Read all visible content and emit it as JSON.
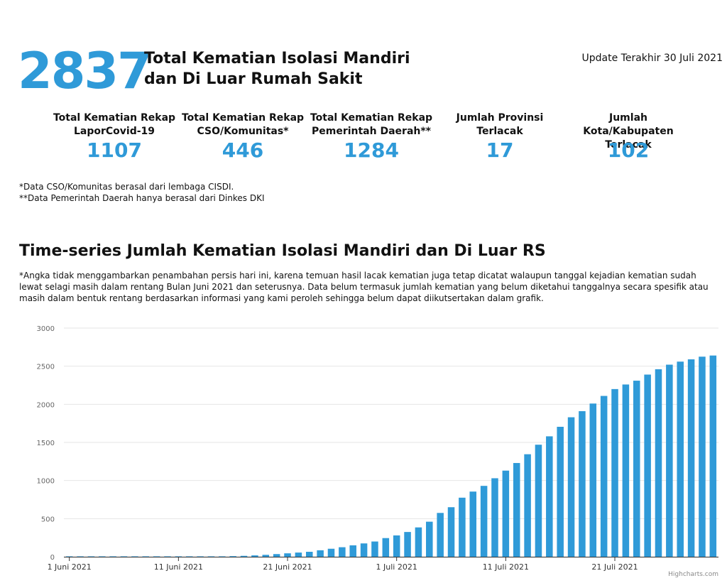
{
  "header": {
    "total_value": "2837",
    "title_line1": "Total Kematian Isolasi Mandiri",
    "title_line2": "dan Di Luar Rumah Sakit",
    "update_text": "Update Terakhir 30 Juli 2021"
  },
  "stats": [
    {
      "label_line1": "Total Kematian Rekap",
      "label_line2": "LaporCovid-19",
      "value": "1107"
    },
    {
      "label_line1": "Total Kematian Rekap",
      "label_line2": "CSO/Komunitas*",
      "value": "446"
    },
    {
      "label_line1": "Total Kematian Rekap",
      "label_line2": "Pemerintah Daerah**",
      "value": "1284"
    },
    {
      "label_line1": "Jumlah Provinsi",
      "label_line2": "Terlacak",
      "value": "17"
    },
    {
      "label_line1": "Jumlah Kota/Kabupaten",
      "label_line2": "Terlacak",
      "value": "102"
    }
  ],
  "notes": {
    "note1": "*Data CSO/Komunitas berasal dari lembaga CISDI.",
    "note2": "**Data Pemerintah Daerah hanya berasal dari Dinkes DKI"
  },
  "chart_section": {
    "title": "Time-series Jumlah Kematian Isolasi Mandiri dan Di Luar RS",
    "description": "*Angka tidak menggambarkan penambahan persis hari ini, karena temuan hasil lacak kematian juga tetap dicatat walaupun tanggal kejadian kematian sudah lewat selagi masih dalam rentang Bulan Juni 2021 dan seterusnya. Data belum termasuk jumlah kematian yang belum diketahui tanggalnya secara spesifik atau masih dalam bentuk rentang berdasarkan informasi yang kami peroleh sehingga belum dapat diikutsertakan dalam grafik.",
    "credit": "Highcharts.com"
  },
  "chart_data": {
    "type": "bar",
    "x": [
      "2021-06-01",
      "2021-06-02",
      "2021-06-03",
      "2021-06-04",
      "2021-06-05",
      "2021-06-06",
      "2021-06-07",
      "2021-06-08",
      "2021-06-09",
      "2021-06-10",
      "2021-06-11",
      "2021-06-12",
      "2021-06-13",
      "2021-06-14",
      "2021-06-15",
      "2021-06-16",
      "2021-06-17",
      "2021-06-18",
      "2021-06-19",
      "2021-06-20",
      "2021-06-21",
      "2021-06-22",
      "2021-06-23",
      "2021-06-24",
      "2021-06-25",
      "2021-06-26",
      "2021-06-27",
      "2021-06-28",
      "2021-06-29",
      "2021-06-30",
      "2021-07-01",
      "2021-07-02",
      "2021-07-03",
      "2021-07-04",
      "2021-07-05",
      "2021-07-06",
      "2021-07-07",
      "2021-07-08",
      "2021-07-09",
      "2021-07-10",
      "2021-07-11",
      "2021-07-12",
      "2021-07-13",
      "2021-07-14",
      "2021-07-15",
      "2021-07-16",
      "2021-07-17",
      "2021-07-18",
      "2021-07-19",
      "2021-07-20",
      "2021-07-21",
      "2021-07-22",
      "2021-07-23",
      "2021-07-24",
      "2021-07-25",
      "2021-07-26",
      "2021-07-27",
      "2021-07-28",
      "2021-07-29",
      "2021-07-30"
    ],
    "values": [
      1,
      1,
      1,
      1,
      1,
      1,
      1,
      1,
      1,
      1,
      1,
      1,
      1,
      1,
      5,
      8,
      12,
      18,
      25,
      35,
      45,
      55,
      65,
      85,
      105,
      125,
      150,
      175,
      200,
      245,
      280,
      325,
      385,
      460,
      575,
      650,
      775,
      855,
      930,
      1030,
      1130,
      1230,
      1345,
      1470,
      1580,
      1705,
      1830,
      1910,
      2010,
      2110,
      2200,
      2260,
      2310,
      2390,
      2460,
      2520,
      2560,
      2590,
      2625,
      2640
    ],
    "x_tick_labels": [
      "1 Juni 2021",
      "11 Juni 2021",
      "21 Juni 2021",
      "1 Juli 2021",
      "11 Juli 2021",
      "21 Juli 2021"
    ],
    "x_tick_dates": [
      "2021-06-01",
      "2021-06-11",
      "2021-06-21",
      "2021-07-01",
      "2021-07-11",
      "2021-07-21"
    ],
    "y_ticks": [
      0,
      500,
      1000,
      1500,
      2000,
      2500,
      3000
    ],
    "ylim": [
      0,
      3000
    ],
    "grid": true,
    "bar_color": "#2f9ad8"
  }
}
